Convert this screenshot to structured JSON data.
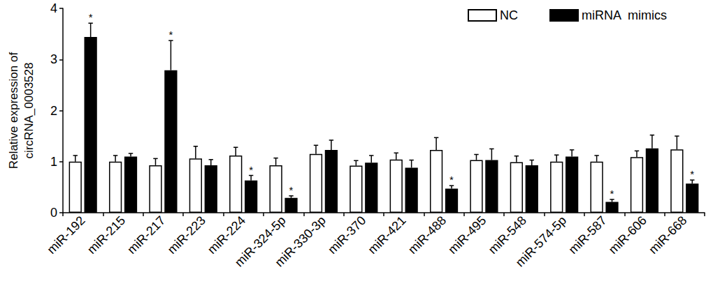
{
  "chart_data": {
    "type": "bar",
    "y_label": "Relative expression of\ncircRNA_0003528",
    "categories": [
      "miR-192",
      "miR-215",
      "miR-217",
      "miR-223",
      "miR-224",
      "miR-324-5p",
      "miR-330-3p",
      "miR-370",
      "miR-421",
      "miR-488",
      "miR-495",
      "miR-548",
      "miR-574-5p",
      "miR-587",
      "miR-606",
      "miR-668"
    ],
    "series": [
      {
        "name": "NC",
        "color": "#ffffff",
        "values": [
          1.0,
          1.0,
          0.93,
          1.06,
          1.12,
          0.93,
          1.15,
          0.92,
          1.04,
          1.23,
          1.03,
          0.99,
          1.0,
          1.0,
          1.09,
          1.24
        ],
        "errors": [
          0.12,
          0.12,
          0.13,
          0.24,
          0.16,
          0.14,
          0.17,
          0.1,
          0.13,
          0.24,
          0.11,
          0.12,
          0.13,
          0.12,
          0.12,
          0.26
        ],
        "significance": [
          null,
          null,
          null,
          null,
          null,
          null,
          null,
          null,
          null,
          null,
          null,
          null,
          null,
          null,
          null,
          null
        ]
      },
      {
        "name": "miRNA  mimics",
        "color": "#000000",
        "values": [
          3.44,
          1.1,
          2.79,
          0.93,
          0.63,
          0.29,
          1.23,
          0.98,
          0.88,
          0.47,
          1.03,
          0.93,
          1.1,
          0.21,
          1.26,
          0.57
        ],
        "errors": [
          0.27,
          0.06,
          0.58,
          0.11,
          0.1,
          0.04,
          0.19,
          0.14,
          0.15,
          0.06,
          0.22,
          0.1,
          0.13,
          0.05,
          0.26,
          0.07
        ],
        "significance": [
          "*",
          null,
          "*",
          null,
          "*",
          "*",
          null,
          null,
          null,
          "*",
          null,
          null,
          null,
          "*",
          null,
          "*"
        ]
      }
    ],
    "ylim": [
      0,
      4
    ],
    "yticks": [
      0,
      1,
      2,
      3,
      4
    ],
    "grid": false,
    "legend": "upper right"
  }
}
